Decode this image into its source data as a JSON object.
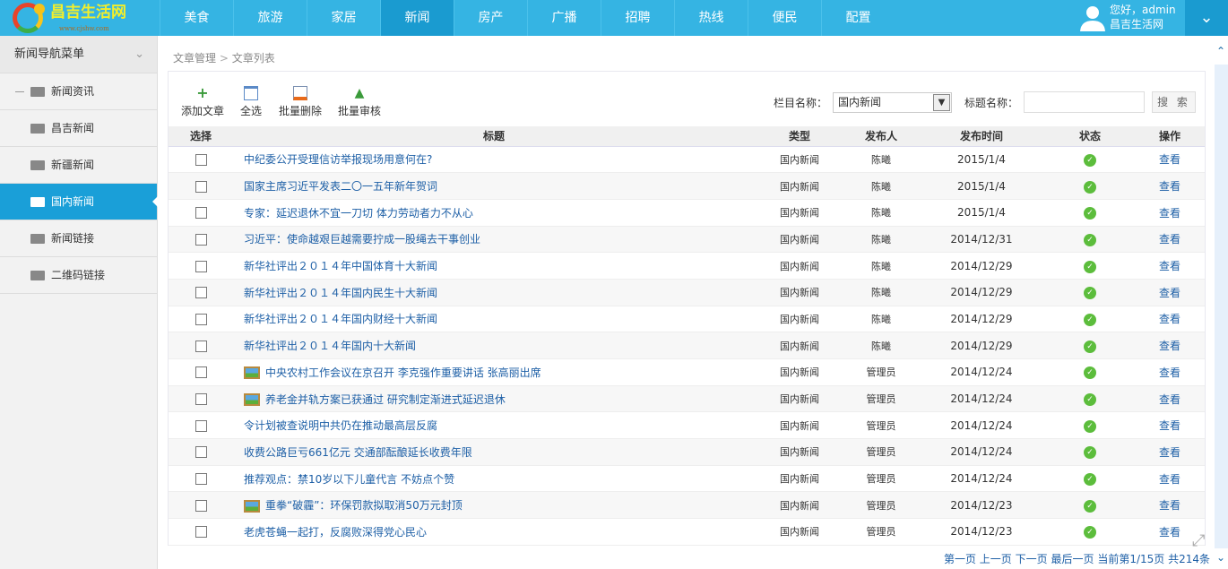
{
  "logo": {
    "name": "昌吉生活网",
    "url": "www.cjshw.com"
  },
  "nav": [
    "美食",
    "旅游",
    "家居",
    "新闻",
    "房产",
    "广播",
    "招聘",
    "热线",
    "便民",
    "配置"
  ],
  "nav_active": 3,
  "user": {
    "greeting": "您好，admin",
    "site": "昌吉生活网"
  },
  "sidebar": {
    "title": "新闻导航菜单",
    "items": [
      {
        "label": "新闻资讯"
      },
      {
        "label": "昌吉新闻"
      },
      {
        "label": "新疆新闻"
      },
      {
        "label": "国内新闻",
        "active": true
      },
      {
        "label": "新闻链接"
      },
      {
        "label": "二维码链接"
      }
    ]
  },
  "breadcrumb": {
    "parent": "文章管理",
    "sep": ">",
    "current": "文章列表"
  },
  "toolbar": {
    "add": "添加文章",
    "select_all": "全选",
    "batch_delete": "批量删除",
    "batch_review": "批量审核"
  },
  "filter": {
    "column_label": "栏目名称：",
    "column_value": "国内新闻",
    "title_label": "标题名称：",
    "title_value": "",
    "search": "搜 索"
  },
  "table": {
    "headers": [
      "选择",
      "标题",
      "类型",
      "发布人",
      "发布时间",
      "状态",
      "操作"
    ],
    "rows": [
      {
        "title": "中纪委公开受理信访举报现场用意何在?",
        "type": "国内新闻",
        "author": "陈曦",
        "date": "2015/1/4",
        "action": "查看",
        "pic": false
      },
      {
        "title": "国家主席习近平发表二〇一五年新年贺词",
        "type": "国内新闻",
        "author": "陈曦",
        "date": "2015/1/4",
        "action": "查看",
        "pic": false
      },
      {
        "title": "专家：延迟退休不宜一刀切 体力劳动者力不从心",
        "type": "国内新闻",
        "author": "陈曦",
        "date": "2015/1/4",
        "action": "查看",
        "pic": false
      },
      {
        "title": "习近平：使命越艰巨越需要拧成一股绳去干事创业",
        "type": "国内新闻",
        "author": "陈曦",
        "date": "2014/12/31",
        "action": "查看",
        "pic": false
      },
      {
        "title": "新华社评出２０１４年中国体育十大新闻",
        "type": "国内新闻",
        "author": "陈曦",
        "date": "2014/12/29",
        "action": "查看",
        "pic": false
      },
      {
        "title": "新华社评出２０１４年国内民生十大新闻",
        "type": "国内新闻",
        "author": "陈曦",
        "date": "2014/12/29",
        "action": "查看",
        "pic": false
      },
      {
        "title": "新华社评出２０１４年国内财经十大新闻",
        "type": "国内新闻",
        "author": "陈曦",
        "date": "2014/12/29",
        "action": "查看",
        "pic": false
      },
      {
        "title": "新华社评出２０１４年国内十大新闻",
        "type": "国内新闻",
        "author": "陈曦",
        "date": "2014/12/29",
        "action": "查看",
        "pic": false
      },
      {
        "title": "中央农村工作会议在京召开 李克强作重要讲话 张高丽出席",
        "type": "国内新闻",
        "author": "管理员",
        "date": "2014/12/24",
        "action": "查看",
        "pic": true
      },
      {
        "title": "养老金并轨方案已获通过 研究制定渐进式延迟退休",
        "type": "国内新闻",
        "author": "管理员",
        "date": "2014/12/24",
        "action": "查看",
        "pic": true
      },
      {
        "title": "令计划被查说明中共仍在推动最高层反腐",
        "type": "国内新闻",
        "author": "管理员",
        "date": "2014/12/24",
        "action": "查看",
        "pic": false
      },
      {
        "title": "收费公路巨亏661亿元 交通部酝酿延长收费年限",
        "type": "国内新闻",
        "author": "管理员",
        "date": "2014/12/24",
        "action": "查看",
        "pic": false
      },
      {
        "title": "推荐观点：禁10岁以下儿童代言 不妨点个赞",
        "type": "国内新闻",
        "author": "管理员",
        "date": "2014/12/24",
        "action": "查看",
        "pic": false
      },
      {
        "title": "重拳“破霾”：环保罚款拟取消50万元封顶",
        "type": "国内新闻",
        "author": "管理员",
        "date": "2014/12/23",
        "action": "查看",
        "pic": true
      },
      {
        "title": "老虎苍蝇一起打，反腐败深得党心民心",
        "type": "国内新闻",
        "author": "管理员",
        "date": "2014/12/23",
        "action": "查看",
        "pic": false
      }
    ]
  },
  "pager": {
    "first": "第一页",
    "prev": "上一页",
    "next": "下一页",
    "last": "最后一页",
    "info": "当前第1/15页 共214条"
  },
  "colors": {
    "nav": "#35b4e3",
    "nav_active": "#1a9bd0",
    "sidebar_active": "#1a9fd8",
    "link": "#1d5fa6",
    "status_ok": "#5cbd3c"
  }
}
